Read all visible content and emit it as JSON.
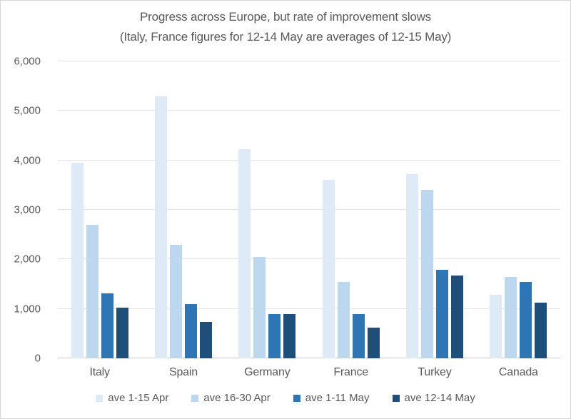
{
  "window": {
    "background": "#ffffff",
    "border_color": "#d6d6d6"
  },
  "chart_data": {
    "type": "bar",
    "title": "Progress across Europe, but rate of improvement slows",
    "subtitle": "(Italy, France figures for 12-14 May are averages of 12-15 May)",
    "text_color": "#595959",
    "grid_color": "#e4e4e4",
    "axis_color": "#c9c9c9",
    "grid": "horizontal",
    "legend_position": "bottom",
    "categories": [
      "Italy",
      "Spain",
      "Germany",
      "France",
      "Turkey",
      "Canada"
    ],
    "series": [
      {
        "name": "ave 1-15 Apr",
        "color": "#DEEBF7",
        "values": [
          3950,
          5300,
          4220,
          3600,
          3720,
          1280
        ]
      },
      {
        "name": "ave 16-30 Apr",
        "color": "#BDD7EE",
        "values": [
          2700,
          2290,
          2050,
          1550,
          3400,
          1650
        ]
      },
      {
        "name": "ave 1-11 May",
        "color": "#2E75B6",
        "values": [
          1310,
          1090,
          890,
          900,
          1790,
          1550
        ]
      },
      {
        "name": "ave 12-14 May",
        "color": "#1F4E79",
        "values": [
          1020,
          730,
          890,
          620,
          1670,
          1120
        ]
      }
    ],
    "ylim": [
      0,
      6000
    ],
    "y_ticks": [
      {
        "label": "0",
        "value": 0
      },
      {
        "label": "1,000",
        "value": 1000
      },
      {
        "label": "2,000",
        "value": 2000
      },
      {
        "label": "3,000",
        "value": 3000
      },
      {
        "label": "4,000",
        "value": 4000
      },
      {
        "label": "5,000",
        "value": 5000
      },
      {
        "label": "6,000",
        "value": 6000
      }
    ]
  }
}
